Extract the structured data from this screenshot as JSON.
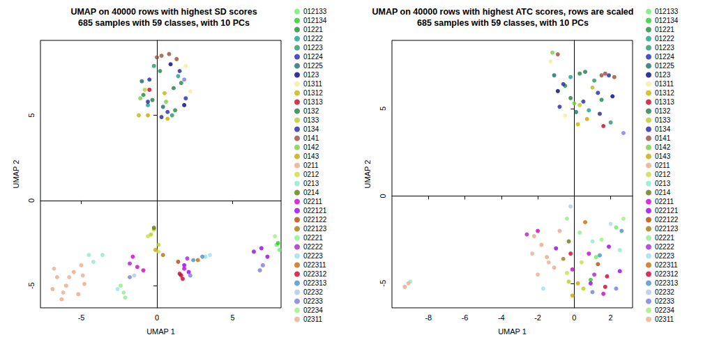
{
  "chart_data": [
    {
      "type": "scatter",
      "title": "UMAP on 40000 rows with highest SD scores\n685 samples with 59 classes, with 10 PCs",
      "xlabel": "UMAP 1",
      "ylabel": "UMAP 2",
      "xlim": [
        -7.7,
        8.2
      ],
      "ylim": [
        -6.3,
        9.4
      ],
      "xticks": [
        -5,
        0,
        5
      ],
      "yticks": [
        -5,
        0,
        5
      ],
      "grid": false,
      "legend": "right",
      "marker": "circle",
      "series": [
        {
          "name": "012133",
          "color": "#66ee66",
          "x": [
            7.9,
            8.1
          ],
          "y": [
            -2.6,
            -2.9
          ]
        },
        {
          "name": "012134",
          "color": "#22cc22",
          "x": [
            8.0
          ],
          "y": [
            -2.5
          ]
        },
        {
          "name": "01221",
          "color": "#1a8a3a",
          "x": [
            -0.9,
            1.2,
            0.2,
            1.6
          ],
          "y": [
            6.2,
            5.3,
            7.6,
            6.9
          ]
        },
        {
          "name": "01222",
          "color": "#17a08c",
          "x": [
            -0.6,
            1.4
          ],
          "y": [
            5.6,
            7.3
          ]
        },
        {
          "name": "01223",
          "color": "#229966",
          "x": [
            -0.2,
            1.0
          ],
          "y": [
            7.9,
            5.0
          ]
        },
        {
          "name": "01224",
          "color": "#2222bb",
          "x": [
            1.5,
            1.9,
            -0.5,
            0.7
          ],
          "y": [
            7.6,
            6.0,
            7.1,
            5.2
          ]
        },
        {
          "name": "01225",
          "color": "#1a6a6a",
          "x": [
            -1.0,
            0.4
          ],
          "y": [
            7.0,
            5.5
          ]
        },
        {
          "name": "0123",
          "color": "#000080",
          "x": [
            1.8,
            0.9
          ],
          "y": [
            5.6,
            8.0
          ]
        },
        {
          "name": "01311",
          "color": "#f0f0a0",
          "x": [
            1.9,
            2.2
          ],
          "y": [
            7.9,
            6.4
          ]
        },
        {
          "name": "01312",
          "color": "#c8b400",
          "x": [
            -1.2,
            0.5
          ],
          "y": [
            5.0,
            6.3
          ]
        },
        {
          "name": "01313",
          "color": "#cc0022",
          "x": [
            1.6,
            -0.5
          ],
          "y": [
            -4.4,
            6.5
          ]
        },
        {
          "name": "0132",
          "color": "#207a40",
          "x": [
            -0.3,
            1.1
          ],
          "y": [
            5.9,
            6.6
          ]
        },
        {
          "name": "0133",
          "color": "#b8cc20",
          "x": [
            -0.8,
            -0.4,
            0.1,
            -0.2
          ],
          "y": [
            6.5,
            -2.0,
            -2.6,
            -1.7
          ]
        },
        {
          "name": "0134",
          "color": "#2222aa",
          "x": [
            0.3,
            -0.6
          ],
          "y": [
            4.9,
            5.8
          ]
        },
        {
          "name": "0141",
          "color": "#9a4a3a",
          "x": [
            0.3,
            0.8,
            1.3,
            0.0
          ],
          "y": [
            8.5,
            8.6,
            8.3,
            8.4
          ]
        },
        {
          "name": "0142",
          "color": "#7acc40",
          "x": [
            0.6,
            -1.1
          ],
          "y": [
            5.8,
            6.0
          ]
        },
        {
          "name": "0143",
          "color": "#c8a800",
          "x": [
            -0.6,
            0.7,
            -0.1
          ],
          "y": [
            5.0,
            4.8,
            -2.9
          ]
        },
        {
          "name": "0211",
          "color": "#e8a88a",
          "x": [
            -6.6,
            -6.0,
            -5.5,
            -6.9,
            -5.2,
            -6.3,
            -4.8
          ],
          "y": [
            -4.5,
            -5.0,
            -4.2,
            -5.2,
            -5.5,
            -5.8,
            -4.9
          ]
        },
        {
          "name": "0212",
          "color": "#c8e040",
          "x": [
            -0.6,
            0.1
          ],
          "y": [
            -2.1,
            -3.0
          ]
        },
        {
          "name": "0213",
          "color": "#90e8d0",
          "x": [
            -4.5,
            -3.6,
            -4.2,
            3.2
          ],
          "y": [
            -3.2,
            -3.2,
            -3.6,
            -3.3
          ]
        },
        {
          "name": "0214",
          "color": "#607a10",
          "x": [
            -0.2
          ],
          "y": [
            -1.6
          ]
        },
        {
          "name": "02211",
          "color": "#cc00cc",
          "x": [
            -1.6,
            -1.3,
            -0.9,
            1.8
          ],
          "y": [
            -3.3,
            -3.9,
            -4.1,
            -4.0
          ]
        },
        {
          "name": "022121",
          "color": "#9900ee",
          "x": [
            6.4,
            6.9,
            7.3,
            1.8,
            2.1
          ],
          "y": [
            -3.0,
            -2.8,
            -3.3,
            -3.8,
            -4.2
          ]
        },
        {
          "name": "022122",
          "color": "#bb4400",
          "x": [
            1.4
          ],
          "y": [
            -3.6
          ]
        },
        {
          "name": "022123",
          "color": "#a07a10",
          "x": [
            0.4
          ],
          "y": [
            -3.2
          ]
        },
        {
          "name": "02221",
          "color": "#90ee90",
          "x": [
            -2.4,
            -2.2,
            -2.1
          ],
          "y": [
            -5.0,
            -5.4,
            -5.7
          ]
        },
        {
          "name": "02222",
          "color": "#aa22cc",
          "x": [
            -1.8,
            2.0
          ],
          "y": [
            -3.7,
            -3.4
          ]
        },
        {
          "name": "02223",
          "color": "#a0e0f0",
          "x": [
            3.5,
            -2.6
          ],
          "y": [
            -3.2,
            -5.2
          ]
        },
        {
          "name": "022311",
          "color": "#cc6600",
          "x": [
            2.7
          ],
          "y": [
            -3.5
          ]
        },
        {
          "name": "022312",
          "color": "#cc0033",
          "x": [
            1.7,
            1.5
          ],
          "y": [
            -4.6,
            -4.3
          ]
        },
        {
          "name": "022313",
          "color": "#4a90c8",
          "x": [
            2.4,
            3.0
          ],
          "y": [
            -3.5,
            -3.3
          ]
        },
        {
          "name": "02232",
          "color": "#b0c8e8",
          "x": [
            -1.5
          ],
          "y": [
            -4.4
          ]
        },
        {
          "name": "02233",
          "color": "#7a7ae0",
          "x": [
            7.0,
            6.8,
            2.2,
            -1.8,
            1.8
          ],
          "y": [
            -3.8,
            -4.1,
            -4.4,
            -4.5,
            7.1
          ]
        },
        {
          "name": "02234",
          "color": "#a0ee80",
          "x": [
            8.3,
            7.8
          ],
          "y": [
            -2.8,
            -2.1
          ]
        },
        {
          "name": "02311",
          "color": "#e8b090",
          "x": [
            -6.8,
            -5.8,
            -5.0,
            -6.2,
            -4.9
          ],
          "y": [
            -4.0,
            -4.5,
            -3.8,
            -5.4,
            -4.4
          ]
        }
      ]
    },
    {
      "type": "scatter",
      "title": "UMAP on 40000 rows with highest ATC scores, rows are scaled\n685 samples with 59 classes, with 10 PCs",
      "xlabel": "UMAP 1",
      "ylabel": "UMAP 2",
      "xlim": [
        -10,
        3.2
      ],
      "ylim": [
        -6.4,
        8.9
      ],
      "xticks": [
        -8,
        -6,
        -4,
        -2,
        0,
        2
      ],
      "yticks": [
        -5,
        0,
        5
      ],
      "grid": false,
      "legend": "right",
      "marker": "circle",
      "series": [
        {
          "name": "012133",
          "color": "#66ee66",
          "x": [
            1.2,
            2.3
          ],
          "y": [
            -3.5,
            -1.8
          ]
        },
        {
          "name": "012134",
          "color": "#22cc22",
          "x": [
            0.9
          ],
          "y": [
            -4.8
          ]
        },
        {
          "name": "01221",
          "color": "#1a8a3a",
          "x": [
            -0.5,
            1.5,
            0.3
          ],
          "y": [
            6.3,
            5.5,
            7.0
          ]
        },
        {
          "name": "01222",
          "color": "#17a08c",
          "x": [
            0.8,
            -0.2
          ],
          "y": [
            4.9,
            6.8
          ]
        },
        {
          "name": "01223",
          "color": "#229966",
          "x": [
            1.1,
            2.0
          ],
          "y": [
            6.6,
            4.2
          ]
        },
        {
          "name": "01224",
          "color": "#2222bb",
          "x": [
            0.5,
            1.3,
            -0.8,
            1.9
          ],
          "y": [
            5.4,
            5.9,
            5.1,
            6.9
          ]
        },
        {
          "name": "01225",
          "color": "#1a6a6a",
          "x": [
            -1.1,
            0.1
          ],
          "y": [
            6.9,
            4.8
          ]
        },
        {
          "name": "0123",
          "color": "#000080",
          "x": [
            -0.9,
            2.1
          ],
          "y": [
            6.0,
            5.7
          ]
        },
        {
          "name": "01311",
          "color": "#f0f0a0",
          "x": [
            -1.3,
            -0.5
          ],
          "y": [
            7.7,
            4.6
          ]
        },
        {
          "name": "01312",
          "color": "#c8b400",
          "x": [
            0.2,
            1.0
          ],
          "y": [
            4.1,
            6.2
          ]
        },
        {
          "name": "01313",
          "color": "#cc0022",
          "x": [
            1.6,
            1.8
          ],
          "y": [
            4.0,
            -4.6
          ]
        },
        {
          "name": "0132",
          "color": "#207a40",
          "x": [
            -0.2,
            0.6
          ],
          "y": [
            5.6,
            7.1
          ]
        },
        {
          "name": "0133",
          "color": "#b8cc20",
          "x": [
            0.3,
            -0.3,
            0.5
          ],
          "y": [
            5.2,
            -4.9,
            -5.3
          ]
        },
        {
          "name": "0134",
          "color": "#2222aa",
          "x": [
            1.4,
            -0.6
          ],
          "y": [
            4.7,
            6.4
          ]
        },
        {
          "name": "0141",
          "color": "#9a4a3a",
          "x": [
            1.7,
            2.2,
            -0.9,
            1.5
          ],
          "y": [
            7.0,
            6.8,
            8.1,
            6.9
          ]
        },
        {
          "name": "0142",
          "color": "#7acc40",
          "x": [
            -1.2,
            0.0
          ],
          "y": [
            8.2,
            5.3
          ]
        },
        {
          "name": "0143",
          "color": "#c8a800",
          "x": [
            0.7,
            -0.1,
            0.2
          ],
          "y": [
            4.4,
            -5.7,
            -5.0
          ]
        },
        {
          "name": "0211",
          "color": "#e8a88a",
          "x": [
            -1.8,
            -1.5,
            -2.2,
            -1.1,
            -9.3,
            -0.8
          ],
          "y": [
            -2.8,
            -3.5,
            -2.3,
            -4.1,
            -5.2,
            -2.0
          ]
        },
        {
          "name": "0212",
          "color": "#c8e040",
          "x": [
            -0.4,
            0.4
          ],
          "y": [
            -4.4,
            -3.8
          ]
        },
        {
          "name": "0213",
          "color": "#90e8d0",
          "x": [
            1.0,
            -9.0,
            2.5
          ],
          "y": [
            -2.6,
            -4.9,
            -3.1
          ]
        },
        {
          "name": "0214",
          "color": "#607a10",
          "x": [
            -0.3
          ],
          "y": [
            -2.6
          ]
        },
        {
          "name": "02211",
          "color": "#cc00cc",
          "x": [
            -2.0,
            0.8,
            1.6,
            -0.1
          ],
          "y": [
            -2.0,
            -3.3,
            -5.6,
            -4.2
          ]
        },
        {
          "name": "022121",
          "color": "#9900ee",
          "x": [
            1.9,
            0.9,
            2.5,
            -1.0
          ],
          "y": [
            -2.9,
            -5.0,
            -4.3,
            -3.0
          ]
        },
        {
          "name": "022122",
          "color": "#bb4400",
          "x": [
            1.3
          ],
          "y": [
            -3.9
          ]
        },
        {
          "name": "022123",
          "color": "#a07a10",
          "x": [
            -0.6
          ],
          "y": [
            -3.6
          ]
        },
        {
          "name": "02221",
          "color": "#90ee90",
          "x": [
            -0.4,
            0.3
          ],
          "y": [
            -1.3,
            -2.1
          ]
        },
        {
          "name": "02222",
          "color": "#aa22cc",
          "x": [
            -2.6,
            1.1
          ],
          "y": [
            -2.2,
            -4.5
          ]
        },
        {
          "name": "02223",
          "color": "#a0e0f0",
          "x": [
            2.0,
            -1.7
          ],
          "y": [
            -1.6,
            -5.3
          ]
        },
        {
          "name": "022311",
          "color": "#cc6600",
          "x": [
            0.6
          ],
          "y": [
            -1.5
          ]
        },
        {
          "name": "022312",
          "color": "#cc0033",
          "x": [
            1.7,
            -0.2
          ],
          "y": [
            -5.2,
            -3.3
          ]
        },
        {
          "name": "022313",
          "color": "#4a90c8",
          "x": [
            2.6,
            1.4
          ],
          "y": [
            -2.0,
            -3.4
          ]
        },
        {
          "name": "02232",
          "color": "#b0c8e8",
          "x": [
            -0.2
          ],
          "y": [
            -0.6
          ]
        },
        {
          "name": "02233",
          "color": "#7a7ae0",
          "x": [
            1.0,
            2.3,
            2.7
          ],
          "y": [
            -5.5,
            -5.3,
            3.6
          ]
        },
        {
          "name": "02234",
          "color": "#a0ee80",
          "x": [
            2.7,
            1.5
          ],
          "y": [
            -1.3,
            -2.5
          ]
        },
        {
          "name": "02311",
          "color": "#e8b090",
          "x": [
            -2.0,
            -1.4,
            -9.1,
            -2.3
          ],
          "y": [
            -4.5,
            -3.8,
            -5.0,
            -3.3
          ]
        }
      ]
    }
  ]
}
